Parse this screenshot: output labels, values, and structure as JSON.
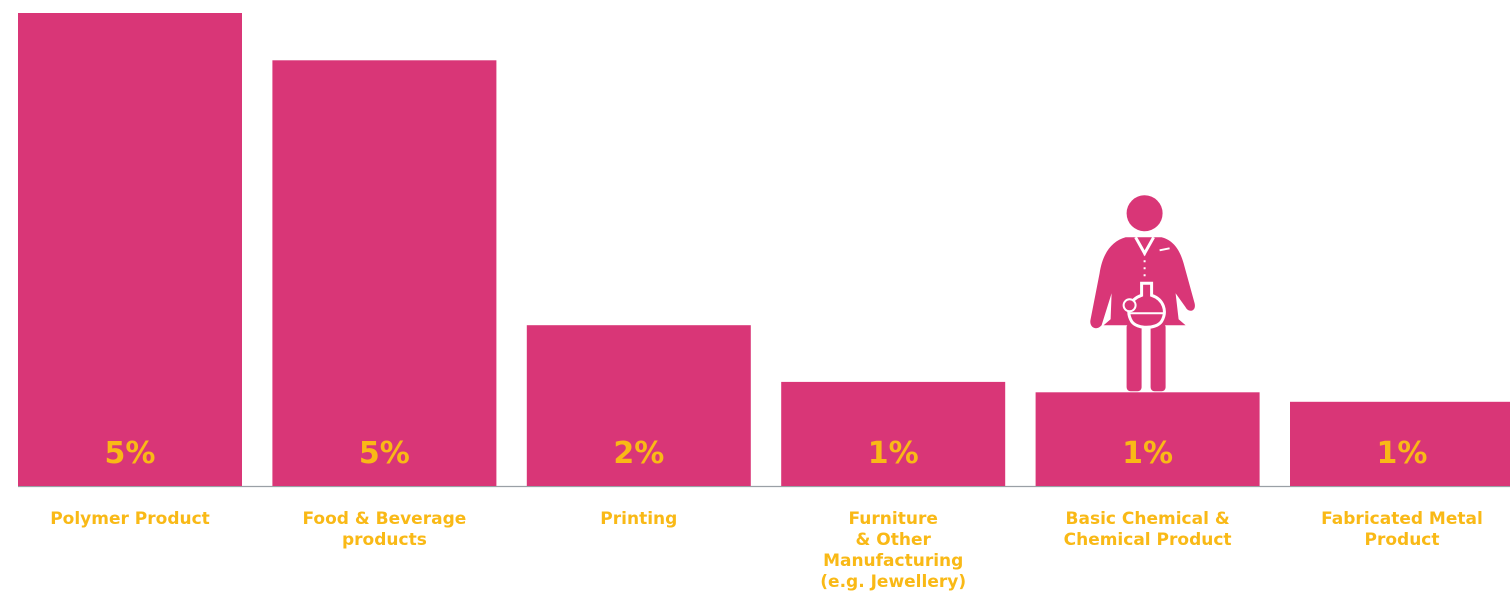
{
  "chart_data": {
    "type": "bar",
    "categories": [
      "Polymer Product",
      "Food & Beverage products",
      "Printing",
      "Furniture & Other Manufacturing (e.g. Jewellery)",
      "Basic Chemical & Chemical Product",
      "Fabricated Metal Product"
    ],
    "category_label_lines": [
      [
        "Polymer Product"
      ],
      [
        "Food & Beverage",
        "products"
      ],
      [
        "Printing"
      ],
      [
        "Furniture",
        "& Other",
        "Manufacturing",
        "(e.g. Jewellery)"
      ],
      [
        "Basic Chemical &",
        "Chemical Product"
      ],
      [
        "Fabricated Metal",
        "Product"
      ]
    ],
    "values": [
      5.0,
      4.5,
      1.7,
      1.1,
      0.99,
      0.89
    ],
    "data_labels": [
      "5%",
      "5%",
      "2%",
      "1%",
      "1%",
      "1%"
    ],
    "ylim": [
      0,
      5
    ],
    "grid": false,
    "legend": "none",
    "icon": {
      "name": "scientist-with-flask-icon",
      "category_index": 4
    },
    "colors": {
      "bar": "#d93677",
      "value_text": "#f9b916",
      "label_text": "#f9b916",
      "baseline": "#9aa0a6"
    }
  }
}
